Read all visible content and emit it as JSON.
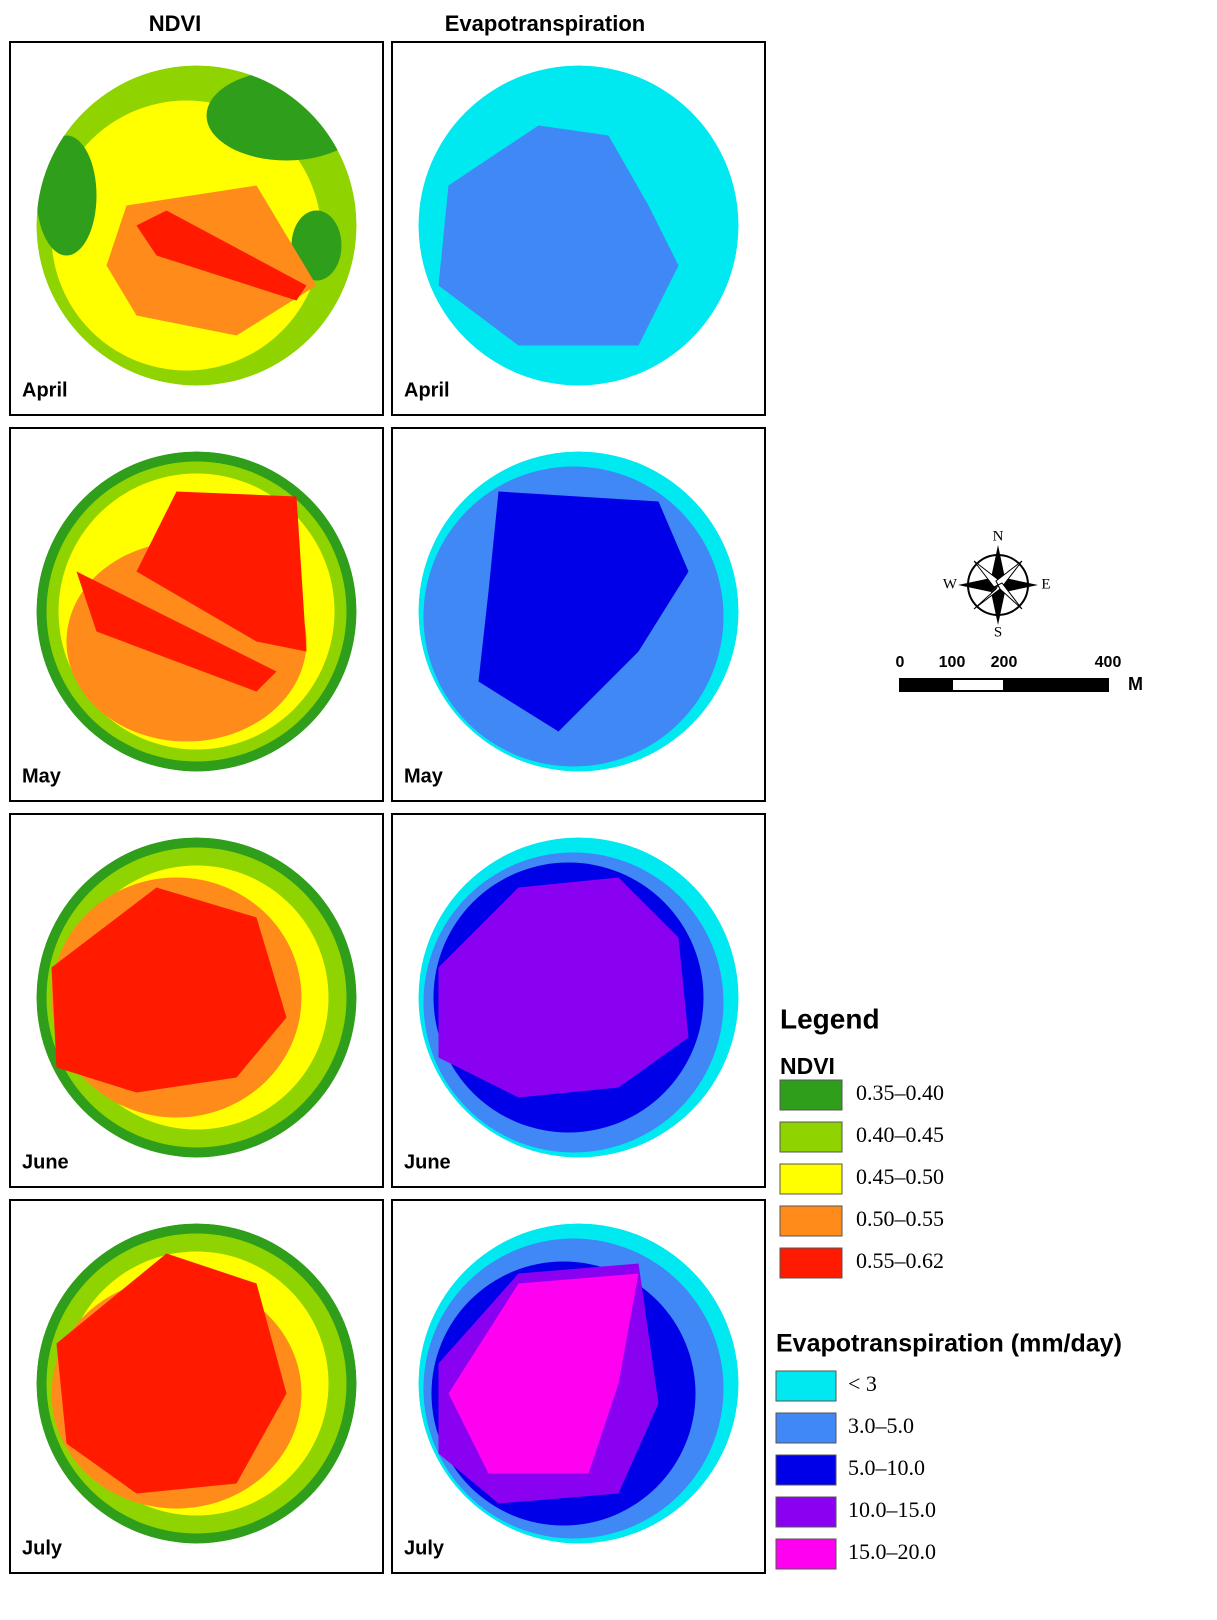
{
  "columns": [
    "NDVI",
    "Evapotranspiration"
  ],
  "months": [
    "April",
    "May",
    "June",
    "July"
  ],
  "compass": {
    "north": "N",
    "south": "S",
    "east": "E",
    "west": "W"
  },
  "scale_bar": {
    "ticks": [
      0,
      100,
      200,
      400
    ],
    "unit": "M"
  },
  "legend": {
    "title": "Legend",
    "groups": [
      {
        "title": "NDVI",
        "items": [
          {
            "label": "0.35–0.40",
            "color": "#2f9e1a"
          },
          {
            "label": "0.40–0.45",
            "color": "#8fd400"
          },
          {
            "label": "0.45–0.50",
            "color": "#ffff00"
          },
          {
            "label": "0.50–0.55",
            "color": "#ff8c1a"
          },
          {
            "label": "0.55–0.62",
            "color": "#ff1a00"
          }
        ]
      },
      {
        "title": "Evapotranspiration (mm/day)",
        "items": [
          {
            "label": "< 3",
            "color": "#00e8f0"
          },
          {
            "label": "3.0–5.0",
            "color": "#3f88f5"
          },
          {
            "label": "5.0–10.0",
            "color": "#0000e8"
          },
          {
            "label": "10.0–15.0",
            "color": "#8a00f0"
          },
          {
            "label": "15.0–20.0",
            "color": "#ff00f0"
          }
        ]
      }
    ]
  }
}
